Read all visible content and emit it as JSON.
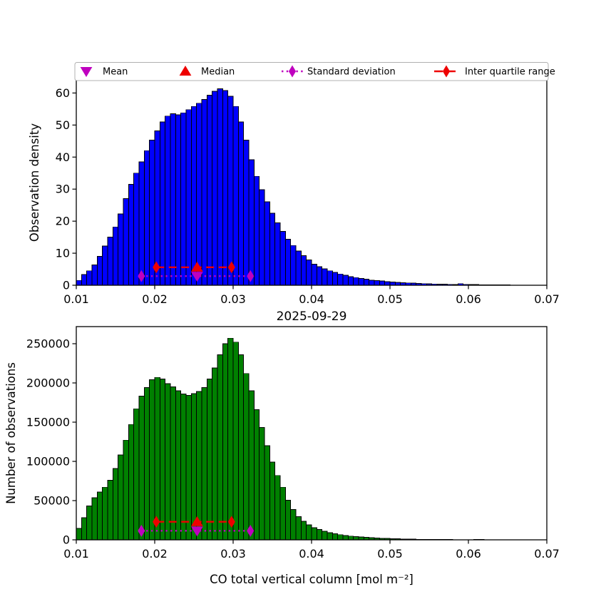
{
  "figure": {
    "title": "2025-09-29",
    "xlabel": "CO total vertical column [mol m⁻²]"
  },
  "legend": {
    "border_color": "#b0b0b0",
    "items": [
      {
        "label": "Mean",
        "marker": "triangle-down",
        "color": "#BF00BF"
      },
      {
        "label": "Median",
        "marker": "triangle-up",
        "color": "#EE0000"
      },
      {
        "label": "Standard deviation",
        "marker": "diamond-dotted",
        "color": "#BF00BF"
      },
      {
        "label": "Inter quartile range",
        "marker": "diamond-dashed",
        "color": "#EE0000"
      }
    ]
  },
  "chart_data": [
    {
      "type": "bar",
      "ylabel": "Observation density",
      "bar_color": "#0000FF",
      "edge_color": "#000000",
      "bin_start": 0.01,
      "bin_width": 0.0006667,
      "xlim": [
        0.01,
        0.07
      ],
      "ylim": [
        0,
        64.1
      ],
      "xticks": [
        0.01,
        0.02,
        0.03,
        0.04,
        0.05,
        0.06,
        0.07
      ],
      "xtick_labels": [
        "0.01",
        "0.02",
        "0.03",
        "0.04",
        "0.05",
        "0.06",
        "0.07"
      ],
      "yticks": [
        0,
        10,
        20,
        30,
        40,
        50,
        60
      ],
      "ytick_labels": [
        "0",
        "10",
        "20",
        "30",
        "40",
        "50",
        "60"
      ],
      "values": [
        1.5,
        3.3,
        4.5,
        6.3,
        9.0,
        12.2,
        15.0,
        18.2,
        22.3,
        27.0,
        31.5,
        35.0,
        38.5,
        42.0,
        45.3,
        48.2,
        51.0,
        52.8,
        53.5,
        53.2,
        53.8,
        54.8,
        55.8,
        56.8,
        58.0,
        59.3,
        60.5,
        61.3,
        60.8,
        59.0,
        55.8,
        51.0,
        45.3,
        39.2,
        34.0,
        29.8,
        26.0,
        22.5,
        19.5,
        16.8,
        14.4,
        12.4,
        10.7,
        9.2,
        7.9,
        6.6,
        5.8,
        5.1,
        4.5,
        4.0,
        3.5,
        3.1,
        2.7,
        2.4,
        2.1,
        1.85,
        1.6,
        1.45,
        1.3,
        1.15,
        1.0,
        0.9,
        0.8,
        0.72,
        0.64,
        0.57,
        0.5,
        0.45,
        0.4,
        0.36,
        0.32,
        0.28,
        0.26,
        0.5,
        0.28,
        0.2,
        0.18,
        0.16,
        0.14,
        0.12,
        0.1,
        0.09,
        0.08,
        0,
        0,
        0,
        0,
        0,
        0,
        0
      ],
      "stats": {
        "mean_x": 0.0254,
        "median_x": 0.0254,
        "std_x": [
          0.0183,
          0.0322
        ],
        "iqr_x": [
          0.0202,
          0.0298
        ],
        "std_line_y": 2.85,
        "iqr_line_y": 5.6,
        "mean_color": "#BF00BF",
        "median_color": "#EE0000"
      }
    },
    {
      "type": "bar",
      "ylabel": "Number of observations",
      "bar_color": "#008000",
      "edge_color": "#000000",
      "bin_start": 0.01,
      "bin_width": 0.0006667,
      "xlim": [
        0.01,
        0.07
      ],
      "ylim": [
        0,
        271800
      ],
      "xticks": [
        0.01,
        0.02,
        0.03,
        0.04,
        0.05,
        0.06,
        0.07
      ],
      "xtick_labels": [
        "0.01",
        "0.02",
        "0.03",
        "0.04",
        "0.05",
        "0.06",
        "0.07"
      ],
      "yticks": [
        0,
        50000,
        100000,
        150000,
        200000,
        250000
      ],
      "ytick_labels": [
        "0",
        "50000",
        "100000",
        "150000",
        "200000",
        "250000"
      ],
      "values": [
        14500,
        28000,
        43000,
        53500,
        61000,
        67000,
        76000,
        91000,
        108000,
        127000,
        147000,
        167000,
        183000,
        194000,
        204000,
        207000,
        205000,
        199000,
        195000,
        190000,
        186000,
        184000,
        186500,
        189000,
        194000,
        205000,
        219000,
        236000,
        250000,
        257000,
        252000,
        236000,
        212000,
        190000,
        166000,
        143000,
        120000,
        99000,
        82000,
        67000,
        50500,
        38500,
        29500,
        23500,
        19000,
        15500,
        13000,
        11000,
        9200,
        7800,
        6600,
        5600,
        4800,
        4100,
        3500,
        3000,
        2600,
        2250,
        1950,
        1700,
        1450,
        1250,
        1080,
        930,
        800,
        700,
        600,
        520,
        450,
        390,
        340,
        295,
        255,
        220,
        190,
        0,
        400,
        340,
        0,
        0,
        0,
        0,
        0,
        0,
        0,
        0,
        0,
        0,
        0,
        0
      ],
      "stats": {
        "mean_x": 0.0254,
        "median_x": 0.0254,
        "std_x": [
          0.0183,
          0.0322
        ],
        "iqr_x": [
          0.0202,
          0.0298
        ],
        "std_line_y": 11500,
        "iqr_line_y": 23000,
        "mean_color": "#BF00BF",
        "median_color": "#EE0000"
      }
    }
  ]
}
